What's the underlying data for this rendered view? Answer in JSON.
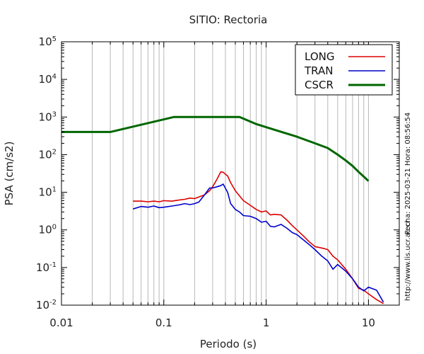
{
  "chart_data": {
    "type": "line",
    "title": "SITIO: Rectoria",
    "xlabel": "Periodo (s)",
    "ylabel": "PSA (cm/s2)",
    "xscale": "log",
    "yscale": "log",
    "xlim": [
      0.01,
      20
    ],
    "ylim": [
      0.01,
      100000
    ],
    "grid": "vertical",
    "legend_position": "top-right",
    "x_ticks": [
      {
        "value": 0.01,
        "label": "0.01"
      },
      {
        "value": 0.1,
        "label": "0.1"
      },
      {
        "value": 1,
        "label": "1"
      },
      {
        "value": 10,
        "label": "10"
      }
    ],
    "y_ticks": [
      {
        "value": 0.01,
        "base": "10",
        "exp": "-2"
      },
      {
        "value": 0.1,
        "base": "10",
        "exp": "-1"
      },
      {
        "value": 1,
        "base": "10",
        "exp": "0"
      },
      {
        "value": 10,
        "base": "10",
        "exp": "1"
      },
      {
        "value": 100,
        "base": "10",
        "exp": "2"
      },
      {
        "value": 1000,
        "base": "10",
        "exp": "3"
      },
      {
        "value": 10000,
        "base": "10",
        "exp": "4"
      },
      {
        "value": 100000,
        "base": "10",
        "exp": "5"
      }
    ],
    "series": [
      {
        "name": "LONG",
        "color": "#dd0000",
        "x": [
          0.05,
          0.06,
          0.07,
          0.08,
          0.09,
          0.1,
          0.12,
          0.14,
          0.16,
          0.18,
          0.2,
          0.22,
          0.25,
          0.28,
          0.3,
          0.33,
          0.36,
          0.38,
          0.42,
          0.45,
          0.5,
          0.55,
          0.6,
          0.7,
          0.8,
          0.9,
          1.0,
          1.1,
          1.2,
          1.4,
          1.6,
          1.8,
          2.0,
          2.3,
          2.6,
          3.0,
          3.5,
          4.0,
          4.5,
          5.0,
          6.0,
          7.0,
          8.0,
          9.0,
          10.0,
          12.0,
          14.0
        ],
        "y": [
          5.8,
          5.8,
          5.6,
          5.8,
          5.6,
          6.0,
          5.8,
          6.2,
          6.5,
          7.0,
          6.8,
          7.5,
          8.5,
          11.0,
          14.0,
          22.0,
          35.0,
          34.0,
          27.0,
          18.0,
          11.0,
          8.0,
          6.0,
          4.5,
          3.5,
          3.0,
          3.2,
          2.5,
          2.6,
          2.5,
          1.8,
          1.3,
          1.0,
          0.7,
          0.5,
          0.36,
          0.33,
          0.3,
          0.2,
          0.16,
          0.09,
          0.05,
          0.028,
          0.025,
          0.02,
          0.014,
          0.011
        ]
      },
      {
        "name": "TRAN",
        "color": "#0000cc",
        "x": [
          0.05,
          0.06,
          0.07,
          0.08,
          0.09,
          0.1,
          0.12,
          0.14,
          0.16,
          0.18,
          0.2,
          0.22,
          0.25,
          0.28,
          0.3,
          0.33,
          0.36,
          0.38,
          0.42,
          0.45,
          0.5,
          0.55,
          0.6,
          0.7,
          0.8,
          0.9,
          1.0,
          1.1,
          1.2,
          1.4,
          1.6,
          1.8,
          2.0,
          2.3,
          2.6,
          3.0,
          3.5,
          4.0,
          4.5,
          5.0,
          6.0,
          7.0,
          8.0,
          9.0,
          10.0,
          12.0,
          14.0
        ],
        "y": [
          3.6,
          4.2,
          4.0,
          4.3,
          3.9,
          4.0,
          4.3,
          4.6,
          5.0,
          4.7,
          5.0,
          5.5,
          8.5,
          13.0,
          13.0,
          14.0,
          15.0,
          16.5,
          10.0,
          5.0,
          3.5,
          3.0,
          2.4,
          2.3,
          2.0,
          1.6,
          1.7,
          1.25,
          1.2,
          1.4,
          1.1,
          0.85,
          0.75,
          0.55,
          0.42,
          0.3,
          0.2,
          0.15,
          0.09,
          0.12,
          0.08,
          0.05,
          0.03,
          0.024,
          0.03,
          0.025,
          0.012
        ]
      },
      {
        "name": "CSCR",
        "color": "#006600",
        "x": [
          0.01,
          0.03,
          0.125,
          0.55,
          0.8,
          1.2,
          2.0,
          3.0,
          4.0,
          5.0,
          6.0,
          7.0,
          8.0,
          10.0
        ],
        "y": [
          400,
          400,
          1000,
          1000,
          650,
          460,
          300,
          200,
          150,
          100,
          70,
          50,
          35,
          20
        ]
      }
    ]
  },
  "side_text": {
    "date": "Fecha: 2025-03-21  Hora: 08:56:54",
    "url": "http://www.lis.ucr.ac.cr"
  }
}
